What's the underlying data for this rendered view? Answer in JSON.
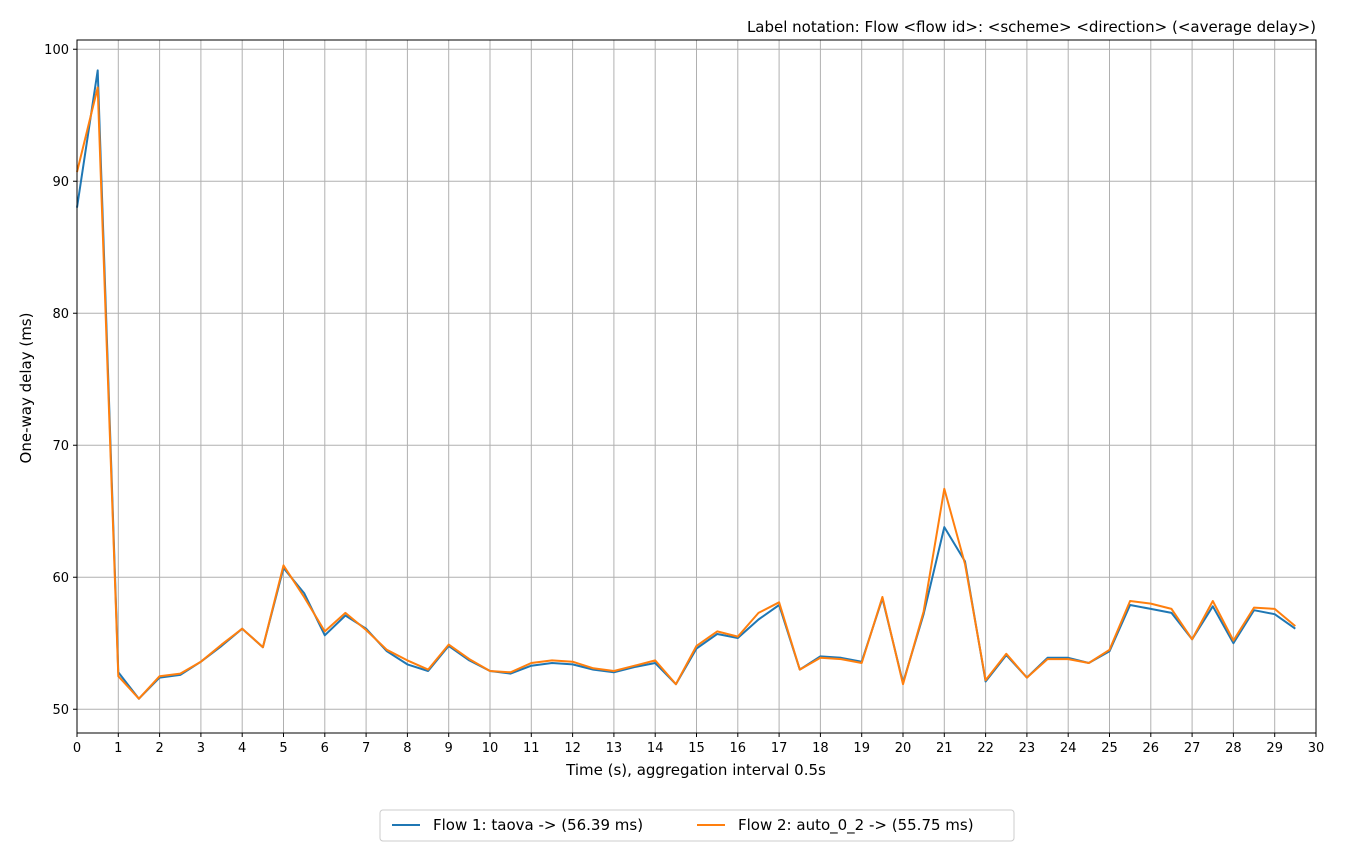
{
  "chart_data": {
    "type": "line",
    "title": "Label notation: Flow <flow id>: <scheme> <direction> (<average delay>)",
    "xlabel": "Time (s), aggregation interval 0.5s",
    "ylabel": "One-way delay (ms)",
    "xlim": [
      0,
      30
    ],
    "ylim": [
      48.2,
      100.7
    ],
    "xticks": [
      0,
      1,
      2,
      3,
      4,
      5,
      6,
      7,
      8,
      9,
      10,
      11,
      12,
      13,
      14,
      15,
      16,
      17,
      18,
      19,
      20,
      21,
      22,
      23,
      24,
      25,
      26,
      27,
      28,
      29,
      30
    ],
    "yticks": [
      50,
      60,
      70,
      80,
      90,
      100
    ],
    "grid": true,
    "legend_position": "bottom-center",
    "x": [
      0,
      0.5,
      1,
      1.5,
      2,
      2.5,
      3,
      3.5,
      4,
      4.5,
      5,
      5.5,
      6,
      6.5,
      7,
      7.5,
      8,
      8.5,
      9,
      9.5,
      10,
      10.5,
      11,
      11.5,
      12,
      12.5,
      13,
      13.5,
      14,
      14.5,
      15,
      15.5,
      16,
      16.5,
      17,
      17.5,
      18,
      18.5,
      19,
      19.5,
      20,
      20.5,
      21,
      21.5,
      22,
      22.5,
      23,
      23.5,
      24,
      24.5,
      25,
      25.5,
      26,
      26.5,
      27,
      27.5,
      28,
      28.5,
      29,
      29.5
    ],
    "series": [
      {
        "name": "Flow 1: taova -> (56.39 ms)",
        "color": "#1f77b4",
        "values": [
          88.0,
          98.4,
          52.8,
          50.8,
          52.4,
          52.6,
          53.6,
          54.8,
          56.1,
          54.7,
          60.7,
          58.8,
          55.6,
          57.1,
          56.1,
          54.4,
          53.4,
          52.9,
          54.8,
          53.7,
          52.9,
          52.7,
          53.3,
          53.5,
          53.4,
          53.0,
          52.8,
          53.2,
          53.5,
          51.9,
          54.6,
          55.7,
          55.4,
          56.8,
          57.9,
          53.0,
          54.0,
          53.9,
          53.6,
          58.4,
          52.0,
          57.2,
          63.8,
          61.2,
          52.1,
          54.1,
          52.4,
          53.9,
          53.9,
          53.5,
          54.4,
          57.9,
          57.6,
          57.3,
          55.3,
          57.8,
          55.0,
          57.5,
          57.2,
          56.1
        ]
      },
      {
        "name": "Flow 2: auto_0_2 -> (55.75 ms)",
        "color": "#ff7f0e",
        "values": [
          90.7,
          97.1,
          52.5,
          50.8,
          52.5,
          52.7,
          53.6,
          54.9,
          56.1,
          54.7,
          60.9,
          58.5,
          55.9,
          57.3,
          56.0,
          54.5,
          53.7,
          53.0,
          54.9,
          53.8,
          52.9,
          52.8,
          53.5,
          53.7,
          53.6,
          53.1,
          52.9,
          53.3,
          53.7,
          51.9,
          54.8,
          55.9,
          55.5,
          57.3,
          58.1,
          53.0,
          53.9,
          53.8,
          53.5,
          58.5,
          51.9,
          57.4,
          66.7,
          61.0,
          52.2,
          54.2,
          52.4,
          53.8,
          53.8,
          53.5,
          54.5,
          58.2,
          58.0,
          57.6,
          55.3,
          58.2,
          55.2,
          57.7,
          57.6,
          56.3
        ]
      }
    ]
  }
}
